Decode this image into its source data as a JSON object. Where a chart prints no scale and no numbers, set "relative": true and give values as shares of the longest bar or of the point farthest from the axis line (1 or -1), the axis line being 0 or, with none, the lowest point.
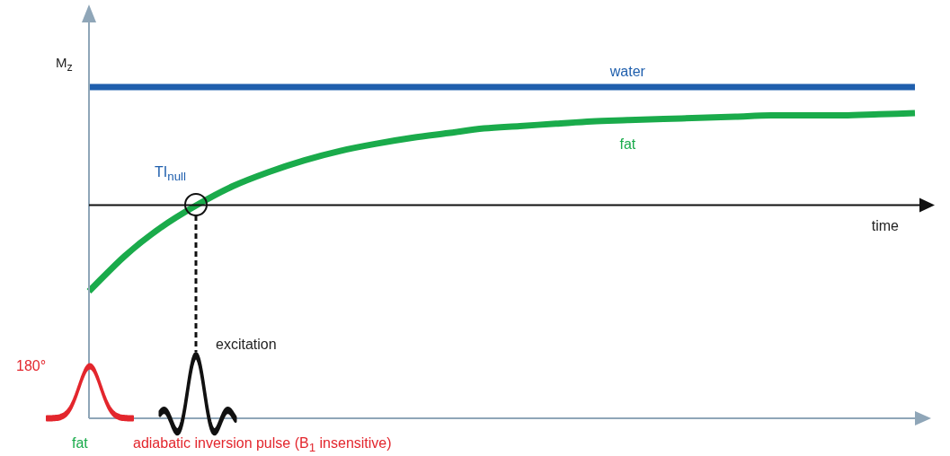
{
  "chart_data": {
    "type": "line",
    "relative": true,
    "ylabel": "M$_{z}$",
    "xlabel": "time",
    "categories": [
      null,
      null,
      null,
      null,
      null,
      null,
      null,
      null,
      null,
      null,
      null,
      null,
      null,
      null,
      null,
      null,
      null,
      null,
      null,
      null,
      null,
      null,
      null,
      null
    ],
    "series": [
      {
        "name": "water",
        "color": "#1f5fad",
        "values": [
          1,
          1,
          1,
          1,
          1,
          1,
          1,
          1,
          1,
          1,
          1,
          1,
          1,
          1,
          1,
          1,
          1,
          1,
          1,
          1,
          1,
          1,
          1,
          1
        ]
      },
      {
        "name": "fat",
        "color": "#1aab4b",
        "values": [
          -0.73,
          -0.43,
          -0.19,
          0.0,
          0.16,
          0.28,
          0.38,
          0.46,
          0.52,
          0.57,
          0.61,
          0.65,
          0.67,
          0.69,
          0.71,
          0.72,
          0.73,
          0.74,
          0.75,
          0.76,
          0.76,
          0.76,
          0.77,
          0.78
        ]
      }
    ],
    "annotations": [
      "TI$_{null}$",
      "excitation",
      "180°",
      "fat",
      "adiabatic inversion pulse (B$_{1}$ insensitive)"
    ],
    "legend": false,
    "marker": "none",
    "line_style": "solid"
  }
}
